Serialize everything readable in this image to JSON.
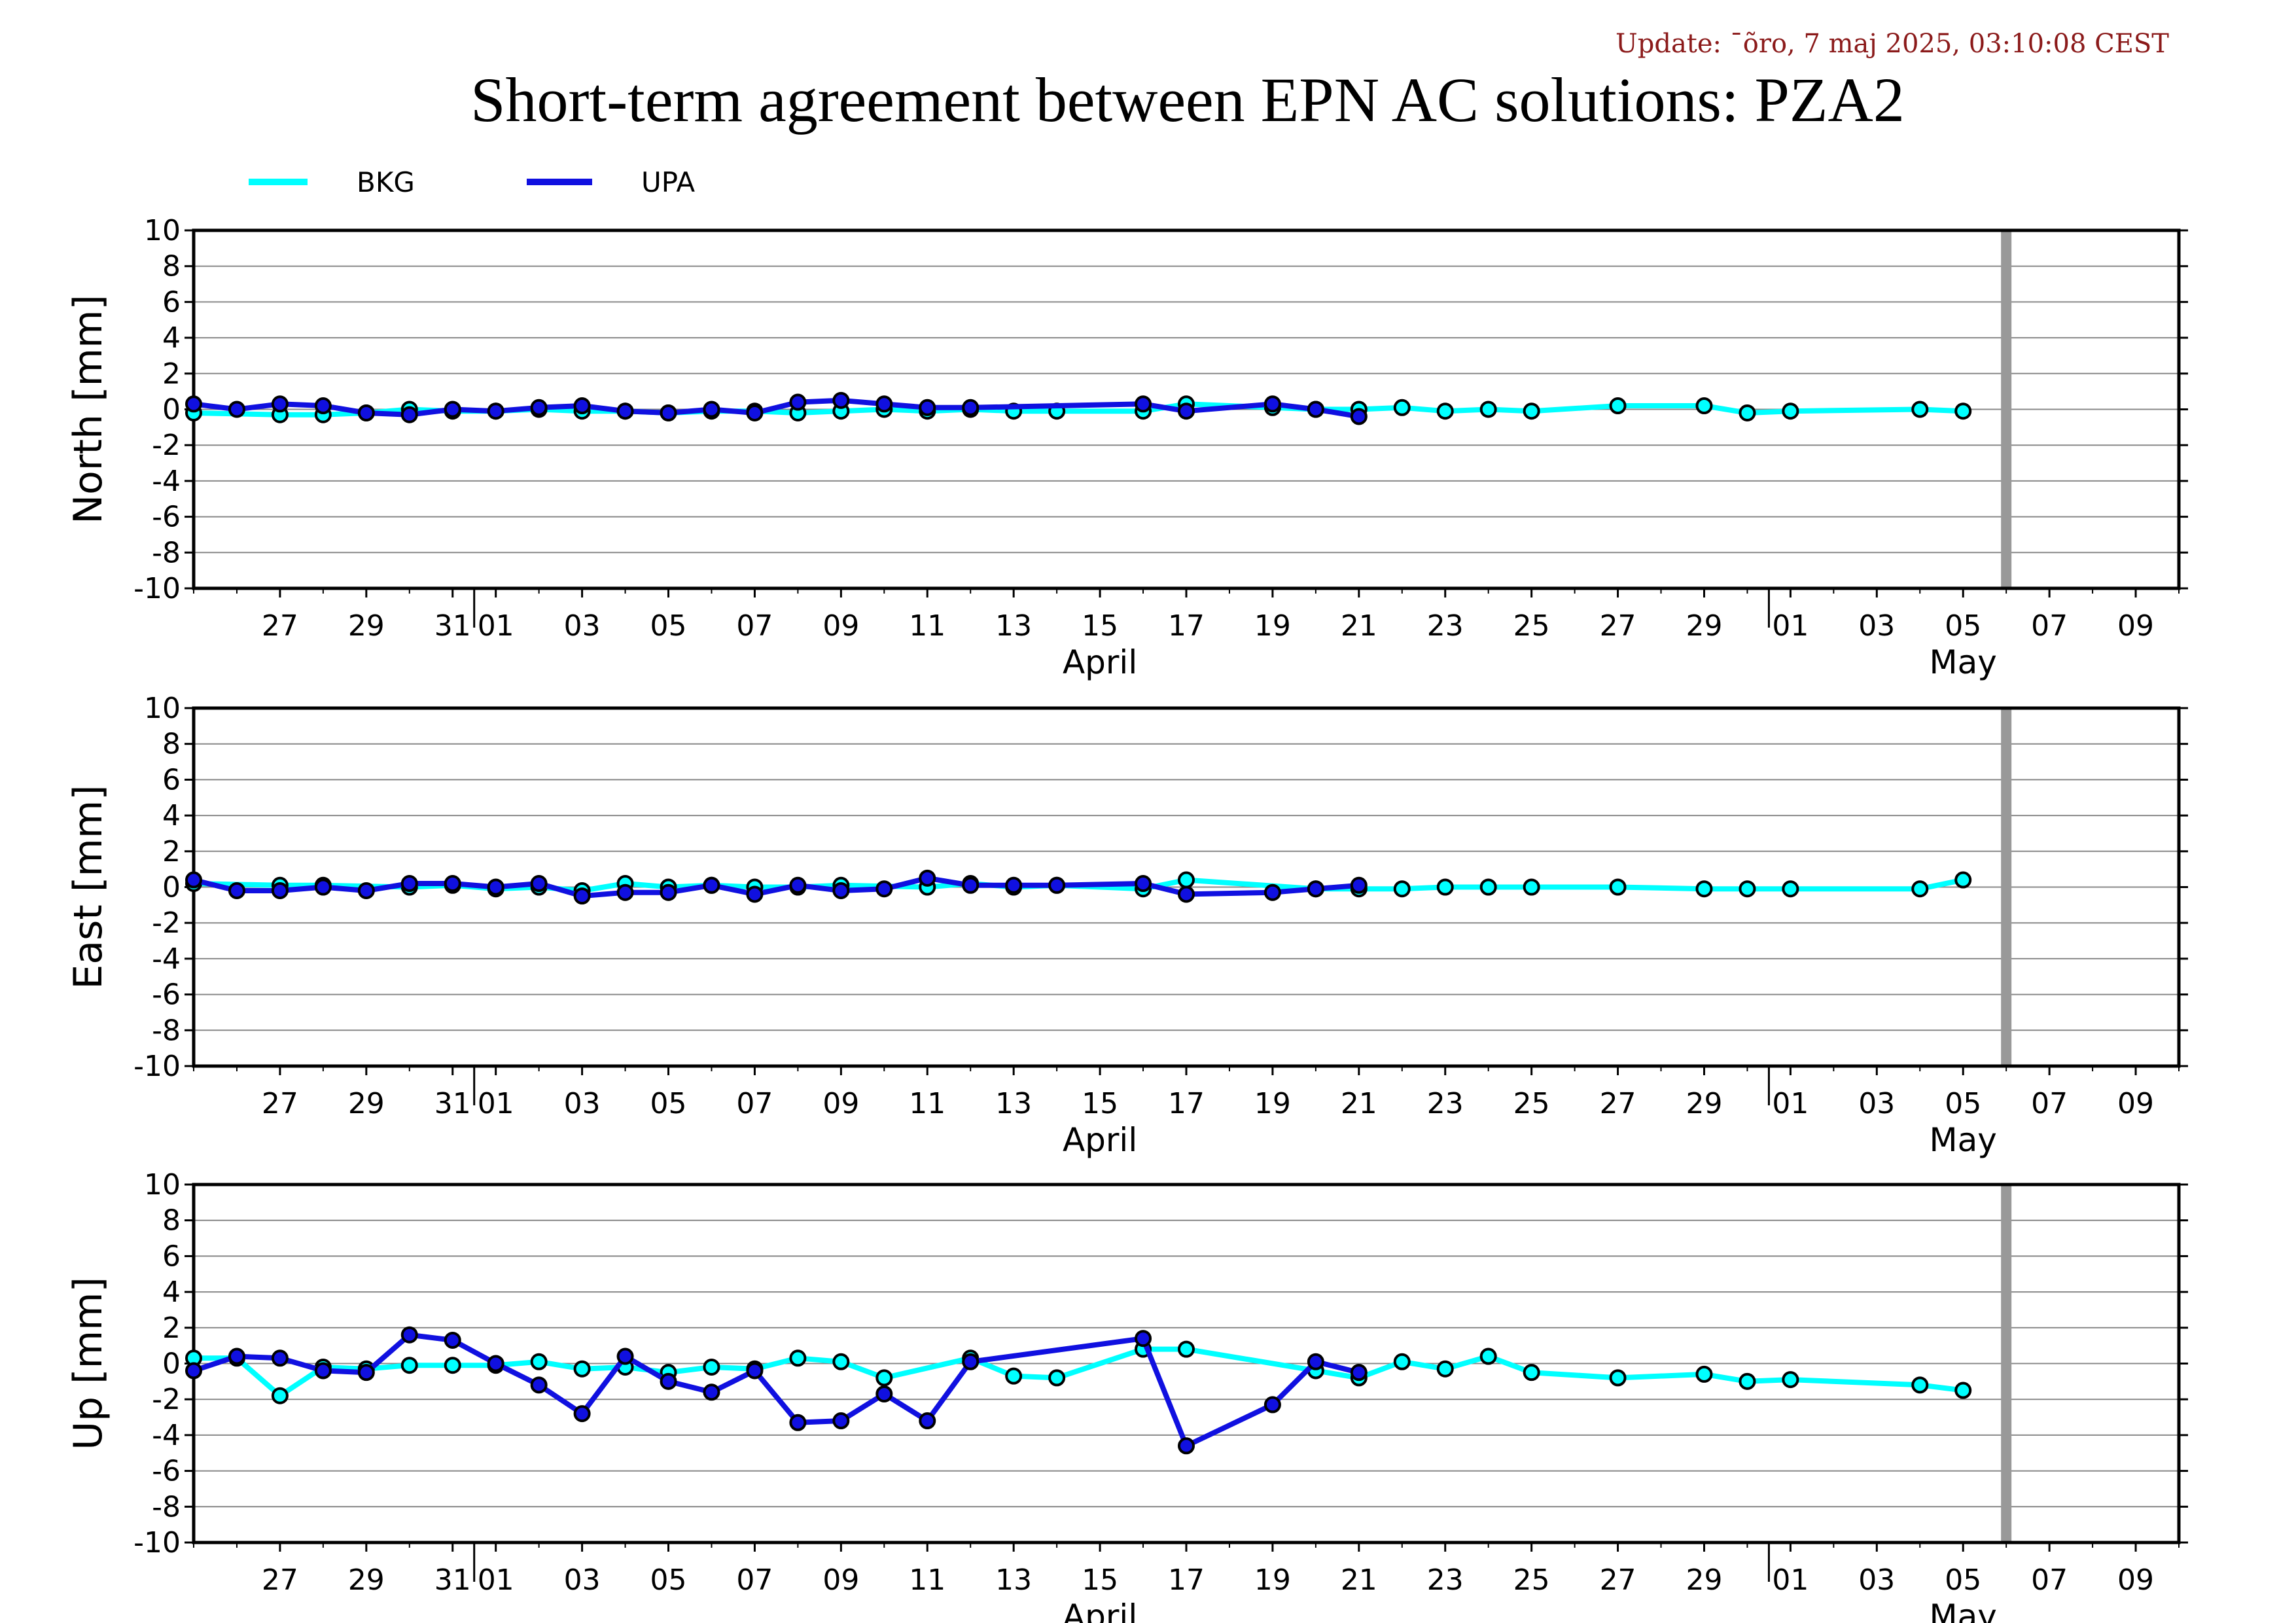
{
  "header": {
    "update": "Update: ¯õro, 7 maj 2025, 03:10:08 CEST",
    "title": "Short-term agreement between EPN AC solutions: PZA2"
  },
  "legend": [
    {
      "name": "BKG",
      "color": "#00ffff"
    },
    {
      "name": "UPA",
      "color": "#0000ff"
    }
  ],
  "colors": {
    "bkg": "#00ffff",
    "upa": "#1010e0",
    "grid": "#888888",
    "today_marker": "#999999"
  },
  "chart_data": {
    "type": "line",
    "x_axis": {
      "unit": "date",
      "range": [
        "2025-03-25",
        "2025-05-10"
      ],
      "tick_labels": [
        "27",
        "29",
        "31",
        "01",
        "03",
        "05",
        "07",
        "09",
        "11",
        "13",
        "15",
        "17",
        "19",
        "21",
        "23",
        "25",
        "27",
        "29",
        "01",
        "03",
        "05",
        "07",
        "09"
      ],
      "tick_dates": [
        "2025-03-27",
        "2025-03-29",
        "2025-03-31",
        "2025-04-01",
        "2025-04-03",
        "2025-04-05",
        "2025-04-07",
        "2025-04-09",
        "2025-04-11",
        "2025-04-13",
        "2025-04-15",
        "2025-04-17",
        "2025-04-19",
        "2025-04-21",
        "2025-04-23",
        "2025-04-25",
        "2025-04-27",
        "2025-04-29",
        "2025-05-01",
        "2025-05-03",
        "2025-05-05",
        "2025-05-07",
        "2025-05-09"
      ],
      "month_labels": [
        {
          "label": "April",
          "date": "2025-04-15"
        },
        {
          "label": "May",
          "date": "2025-05-05"
        }
      ],
      "month_boundaries": [
        "2025-04-01",
        "2025-05-01"
      ],
      "today_marker": "2025-05-06"
    },
    "panels": [
      {
        "ylabel": "North [mm]",
        "ylim": [
          -10,
          10
        ],
        "ytick_labels": [
          "10",
          "8",
          "6",
          "4",
          "2",
          "0",
          "-2",
          "-4",
          "-6",
          "-8",
          "-10"
        ],
        "grid": true,
        "series": [
          {
            "name": "BKG",
            "dates": [
              "2025-03-25",
              "2025-03-27",
              "2025-03-28",
              "2025-03-29",
              "2025-03-30",
              "2025-03-31",
              "2025-04-01",
              "2025-04-02",
              "2025-04-03",
              "2025-04-04",
              "2025-04-05",
              "2025-04-06",
              "2025-04-07",
              "2025-04-08",
              "2025-04-09",
              "2025-04-10",
              "2025-04-11",
              "2025-04-12",
              "2025-04-13",
              "2025-04-14",
              "2025-04-16",
              "2025-04-17",
              "2025-04-19",
              "2025-04-20",
              "2025-04-21",
              "2025-04-22",
              "2025-04-23",
              "2025-04-24",
              "2025-04-25",
              "2025-04-27",
              "2025-04-29",
              "2025-04-30",
              "2025-05-01",
              "2025-05-04",
              "2025-05-05"
            ],
            "values": [
              -0.2,
              -0.3,
              -0.3,
              -0.2,
              0.0,
              -0.1,
              -0.1,
              0.0,
              -0.1,
              -0.1,
              -0.2,
              -0.1,
              -0.1,
              -0.2,
              -0.1,
              0.0,
              -0.1,
              0.0,
              -0.1,
              -0.1,
              -0.1,
              0.3,
              0.1,
              0.0,
              0.0,
              0.1,
              -0.1,
              0.0,
              -0.1,
              0.2,
              0.2,
              -0.2,
              -0.1,
              0.0,
              -0.1
            ]
          },
          {
            "name": "UPA",
            "dates": [
              "2025-03-25",
              "2025-03-26",
              "2025-03-27",
              "2025-03-28",
              "2025-03-29",
              "2025-03-30",
              "2025-03-31",
              "2025-04-01",
              "2025-04-02",
              "2025-04-03",
              "2025-04-04",
              "2025-04-05",
              "2025-04-06",
              "2025-04-07",
              "2025-04-08",
              "2025-04-09",
              "2025-04-10",
              "2025-04-11",
              "2025-04-12",
              "2025-04-16",
              "2025-04-17",
              "2025-04-19",
              "2025-04-20",
              "2025-04-21"
            ],
            "values": [
              0.3,
              0.0,
              0.3,
              0.2,
              -0.2,
              -0.3,
              0.0,
              -0.1,
              0.1,
              0.2,
              -0.1,
              -0.2,
              0.0,
              -0.2,
              0.4,
              0.5,
              0.3,
              0.1,
              0.1,
              0.3,
              -0.1,
              0.3,
              0.0,
              -0.4
            ]
          }
        ]
      },
      {
        "ylabel": "East [mm]",
        "ylim": [
          -10,
          10
        ],
        "ytick_labels": [
          "10",
          "8",
          "6",
          "4",
          "2",
          "0",
          "-2",
          "-4",
          "-6",
          "-8",
          "-10"
        ],
        "grid": true,
        "series": [
          {
            "name": "BKG",
            "dates": [
              "2025-03-25",
              "2025-03-27",
              "2025-03-28",
              "2025-03-30",
              "2025-03-31",
              "2025-04-01",
              "2025-04-02",
              "2025-04-03",
              "2025-04-04",
              "2025-04-05",
              "2025-04-06",
              "2025-04-07",
              "2025-04-08",
              "2025-04-09",
              "2025-04-11",
              "2025-04-12",
              "2025-04-13",
              "2025-04-14",
              "2025-04-16",
              "2025-04-17",
              "2025-04-20",
              "2025-04-21",
              "2025-04-22",
              "2025-04-23",
              "2025-04-24",
              "2025-04-25",
              "2025-04-27",
              "2025-04-29",
              "2025-04-30",
              "2025-05-01",
              "2025-05-04",
              "2025-05-05"
            ],
            "values": [
              0.2,
              0.1,
              0.1,
              0.0,
              0.1,
              -0.1,
              0.0,
              -0.2,
              0.2,
              0.0,
              0.1,
              0.0,
              0.0,
              0.1,
              0.0,
              0.2,
              0.0,
              0.1,
              -0.1,
              0.4,
              -0.1,
              -0.1,
              -0.1,
              0.0,
              0.0,
              0.0,
              0.0,
              -0.1,
              -0.1,
              -0.1,
              -0.1,
              0.4
            ]
          },
          {
            "name": "UPA",
            "dates": [
              "2025-03-25",
              "2025-03-26",
              "2025-03-27",
              "2025-03-28",
              "2025-03-29",
              "2025-03-30",
              "2025-03-31",
              "2025-04-01",
              "2025-04-02",
              "2025-04-03",
              "2025-04-04",
              "2025-04-05",
              "2025-04-06",
              "2025-04-07",
              "2025-04-08",
              "2025-04-09",
              "2025-04-10",
              "2025-04-11",
              "2025-04-12",
              "2025-04-13",
              "2025-04-14",
              "2025-04-16",
              "2025-04-17",
              "2025-04-19",
              "2025-04-20",
              "2025-04-21"
            ],
            "values": [
              0.4,
              -0.2,
              -0.2,
              0.0,
              -0.2,
              0.2,
              0.2,
              0.0,
              0.2,
              -0.5,
              -0.3,
              -0.3,
              0.1,
              -0.4,
              0.1,
              -0.2,
              -0.1,
              0.5,
              0.1,
              0.1,
              0.1,
              0.2,
              -0.4,
              -0.3,
              -0.1,
              0.1
            ]
          }
        ]
      },
      {
        "ylabel": "Up [mm]",
        "ylim": [
          -10,
          10
        ],
        "ytick_labels": [
          "10",
          "8",
          "6",
          "4",
          "2",
          "0",
          "-2",
          "-4",
          "-6",
          "-8",
          "-10"
        ],
        "grid": true,
        "series": [
          {
            "name": "BKG",
            "dates": [
              "2025-03-25",
              "2025-03-26",
              "2025-03-27",
              "2025-03-28",
              "2025-03-29",
              "2025-03-30",
              "2025-03-31",
              "2025-04-01",
              "2025-04-02",
              "2025-04-03",
              "2025-04-04",
              "2025-04-05",
              "2025-04-06",
              "2025-04-07",
              "2025-04-08",
              "2025-04-09",
              "2025-04-10",
              "2025-04-12",
              "2025-04-13",
              "2025-04-14",
              "2025-04-16",
              "2025-04-17",
              "2025-04-20",
              "2025-04-21",
              "2025-04-22",
              "2025-04-23",
              "2025-04-24",
              "2025-04-25",
              "2025-04-27",
              "2025-04-29",
              "2025-04-30",
              "2025-05-01",
              "2025-05-04",
              "2025-05-05"
            ],
            "values": [
              0.3,
              0.3,
              -1.8,
              -0.2,
              -0.3,
              -0.1,
              -0.1,
              -0.1,
              0.1,
              -0.3,
              -0.2,
              -0.5,
              -0.2,
              -0.3,
              0.3,
              0.1,
              -0.8,
              0.3,
              -0.7,
              -0.8,
              0.8,
              0.8,
              -0.4,
              -0.8,
              0.1,
              -0.3,
              0.4,
              -0.5,
              -0.8,
              -0.6,
              -1.0,
              -0.9,
              -1.2,
              -1.5
            ]
          },
          {
            "name": "UPA",
            "dates": [
              "2025-03-25",
              "2025-03-26",
              "2025-03-27",
              "2025-03-28",
              "2025-03-29",
              "2025-03-30",
              "2025-03-31",
              "2025-04-01",
              "2025-04-02",
              "2025-04-03",
              "2025-04-04",
              "2025-04-05",
              "2025-04-06",
              "2025-04-07",
              "2025-04-08",
              "2025-04-09",
              "2025-04-10",
              "2025-04-11",
              "2025-04-12",
              "2025-04-16",
              "2025-04-17",
              "2025-04-19",
              "2025-04-20",
              "2025-04-21"
            ],
            "values": [
              -0.4,
              0.4,
              0.3,
              -0.4,
              -0.5,
              1.6,
              1.3,
              0.0,
              -1.2,
              -2.8,
              0.4,
              -1.0,
              -1.6,
              -0.4,
              -3.3,
              -3.2,
              -1.7,
              -3.2,
              0.1,
              1.4,
              -4.6,
              -2.3,
              0.1,
              -0.5
            ]
          }
        ]
      }
    ]
  }
}
